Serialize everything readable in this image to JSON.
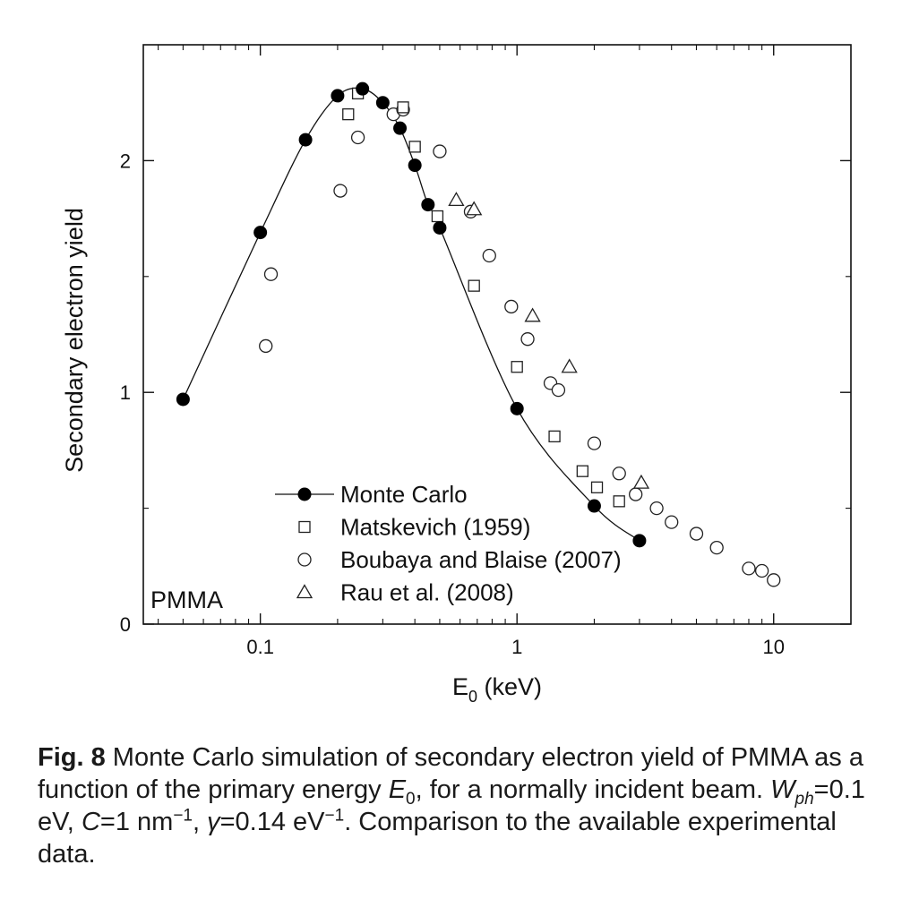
{
  "chart_data": {
    "type": "scatter",
    "xscale": "log",
    "xlim": [
      0.035,
      20
    ],
    "ylim": [
      0,
      2.5
    ],
    "xticks": [
      0.1,
      1,
      10
    ],
    "xtick_labels": [
      "0.1",
      "1",
      "10"
    ],
    "yticks": [
      0,
      1,
      2
    ],
    "ytick_labels": [
      "0",
      "1",
      "2"
    ],
    "xlabel_main": "E",
    "xlabel_sub": "0",
    "xlabel_unit": " (keV)",
    "ylabel": "Secondary electron yield",
    "annotation": "PMMA",
    "grid": false,
    "legend_position": "lower-left",
    "series": [
      {
        "name": "Monte Carlo",
        "marker": "filled-circle",
        "line": true,
        "points": [
          [
            0.05,
            0.97
          ],
          [
            0.1,
            1.69
          ],
          [
            0.15,
            2.09
          ],
          [
            0.2,
            2.28
          ],
          [
            0.25,
            2.31
          ],
          [
            0.3,
            2.25
          ],
          [
            0.35,
            2.14
          ],
          [
            0.4,
            1.98
          ],
          [
            0.45,
            1.81
          ],
          [
            0.5,
            1.71
          ],
          [
            1.0,
            0.93
          ],
          [
            2.0,
            0.51
          ],
          [
            3.0,
            0.36
          ]
        ]
      },
      {
        "name": "Matskevich (1959)",
        "marker": "open-square",
        "line": false,
        "points": [
          [
            0.22,
            2.2
          ],
          [
            0.24,
            2.29
          ],
          [
            0.36,
            2.23
          ],
          [
            0.4,
            2.06
          ],
          [
            0.49,
            1.76
          ],
          [
            0.68,
            1.46
          ],
          [
            1.0,
            1.11
          ],
          [
            1.4,
            0.81
          ],
          [
            1.8,
            0.66
          ],
          [
            2.05,
            0.59
          ],
          [
            2.5,
            0.53
          ]
        ]
      },
      {
        "name": "Boubaya and Blaise (2007)",
        "marker": "open-circle",
        "line": false,
        "points": [
          [
            0.105,
            1.2
          ],
          [
            0.11,
            1.51
          ],
          [
            0.205,
            1.87
          ],
          [
            0.24,
            2.1
          ],
          [
            0.33,
            2.2
          ],
          [
            0.36,
            2.22
          ],
          [
            0.5,
            2.04
          ],
          [
            0.66,
            1.78
          ],
          [
            0.78,
            1.59
          ],
          [
            0.95,
            1.37
          ],
          [
            1.1,
            1.23
          ],
          [
            1.35,
            1.04
          ],
          [
            1.45,
            1.01
          ],
          [
            2.0,
            0.78
          ],
          [
            2.5,
            0.65
          ],
          [
            2.9,
            0.56
          ],
          [
            3.5,
            0.5
          ],
          [
            4.0,
            0.44
          ],
          [
            5.0,
            0.39
          ],
          [
            6.0,
            0.33
          ],
          [
            8.0,
            0.24
          ],
          [
            9.0,
            0.23
          ],
          [
            10.0,
            0.19
          ]
        ]
      },
      {
        "name": "Rau et al. (2008)",
        "marker": "open-triangle",
        "line": false,
        "points": [
          [
            0.58,
            1.83
          ],
          [
            0.68,
            1.79
          ],
          [
            1.15,
            1.33
          ],
          [
            1.6,
            1.11
          ],
          [
            3.05,
            0.61
          ]
        ]
      }
    ]
  },
  "caption": {
    "fig_label": "Fig. 8",
    "text1": " Monte Carlo simulation of secondary electron yield of PMMA as a function of the primary energy ",
    "e_main": "E",
    "e_sub": "0",
    "text2": ", for a normally incident beam. ",
    "w_main": "W",
    "w_sub": "ph",
    "text3": "=0.1 eV, ",
    "c_main": "C",
    "text4": "=1 nm",
    "exp1": "−1",
    "text5": ", ",
    "gamma": "γ",
    "text6": "=0.14 eV",
    "exp2": "−1",
    "text7": ". Comparison to the available experimental data."
  }
}
